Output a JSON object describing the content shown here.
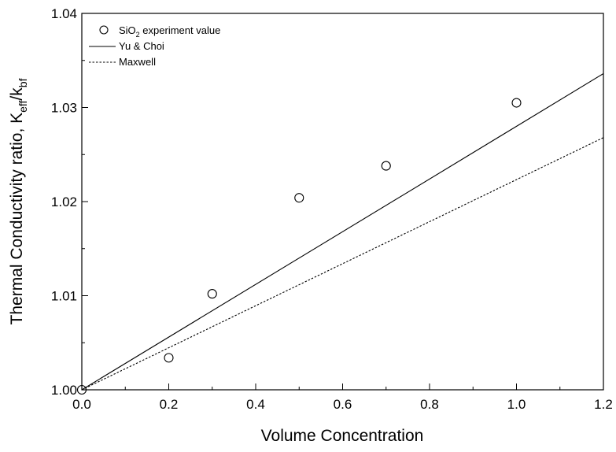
{
  "chart_data": {
    "type": "scatter",
    "xlabel": "Volume Concentration",
    "ylabel": "Thermal Conductivity ratio, K",
    "ylabel_sub1": "eff",
    "ylabel_mid": "/k",
    "ylabel_sub2": "bf",
    "xlim": [
      0.0,
      1.2
    ],
    "ylim": [
      1.0,
      1.04
    ],
    "x_ticks": [
      0.0,
      0.2,
      0.4,
      0.6,
      0.8,
      1.0,
      1.2
    ],
    "x_tick_labels": [
      "0.0",
      "0.2",
      "0.4",
      "0.6",
      "0.8",
      "1.0",
      "1.2"
    ],
    "y_ticks": [
      1.0,
      1.01,
      1.02,
      1.03,
      1.04
    ],
    "y_tick_labels": [
      "1.00",
      "1.01",
      "1.02",
      "1.03",
      "1.04"
    ],
    "grid": false,
    "legend_position": "top-left",
    "series": [
      {
        "name": "SiO",
        "name_sub": "2",
        "name_suffix": " experiment value",
        "type": "scatter",
        "marker": "open-circle",
        "color": "#000000",
        "x": [
          0.0,
          0.2,
          0.3,
          0.5,
          0.7,
          1.0
        ],
        "y": [
          1.0,
          1.0034,
          1.0102,
          1.0204,
          1.0238,
          1.0305
        ]
      },
      {
        "name": "Yu & Choi",
        "type": "line",
        "style": "solid",
        "color": "#000000",
        "x": [
          0.0,
          1.2
        ],
        "y": [
          1.0,
          1.0336
        ]
      },
      {
        "name": "Maxwell",
        "type": "line",
        "style": "dashed",
        "color": "#000000",
        "x": [
          0.0,
          1.2
        ],
        "y": [
          1.0,
          1.0268
        ]
      }
    ]
  }
}
